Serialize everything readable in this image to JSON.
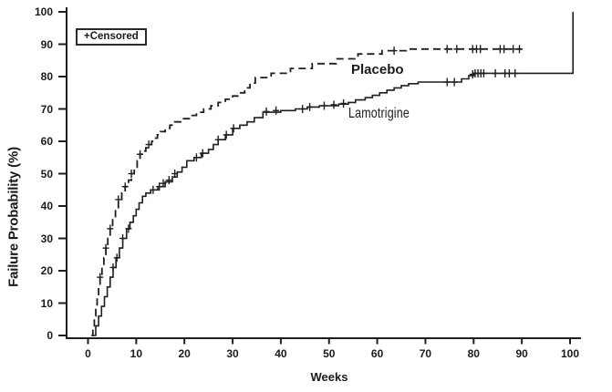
{
  "figure": {
    "background": "#ffffff",
    "line_color": "#1f1f1f"
  },
  "legend": {
    "label": "+Censored"
  },
  "annotations": {
    "placebo_label": "Placebo",
    "lamotrigine_label": "Lamotrigine"
  },
  "chart_data": {
    "type": "line",
    "subtype": "kaplan-meier-step-curves",
    "title": "",
    "xlabel": "Weeks",
    "ylabel": "Failure Probability (%)",
    "xlim": [
      0,
      102
    ],
    "ylim": [
      0,
      100
    ],
    "x_ticks": [
      0,
      10,
      20,
      30,
      40,
      50,
      60,
      70,
      80,
      90,
      100
    ],
    "y_ticks": [
      0,
      10,
      20,
      30,
      40,
      50,
      60,
      70,
      80,
      90,
      100
    ],
    "grid": false,
    "legend_position": "top-left",
    "censor_marker": "plus",
    "series": [
      {
        "name": "Placebo",
        "line_style": "dashed",
        "color": "#1f1f1f",
        "steps": [
          [
            0.7,
            0
          ],
          [
            1,
            3
          ],
          [
            1.3,
            6
          ],
          [
            1.6,
            9
          ],
          [
            1.9,
            12
          ],
          [
            2.2,
            15
          ],
          [
            2.5,
            18
          ],
          [
            2.9,
            21
          ],
          [
            3.3,
            24
          ],
          [
            3.7,
            27
          ],
          [
            4.1,
            30
          ],
          [
            4.6,
            33
          ],
          [
            5.1,
            36
          ],
          [
            5.7,
            39
          ],
          [
            6.3,
            42
          ],
          [
            7,
            44
          ],
          [
            7.7,
            46
          ],
          [
            8.4,
            48
          ],
          [
            9,
            50
          ],
          [
            9.6,
            52
          ],
          [
            10.2,
            54
          ],
          [
            10.8,
            56
          ],
          [
            11.4,
            57
          ],
          [
            12,
            58
          ],
          [
            12.6,
            59
          ],
          [
            13.2,
            60
          ],
          [
            13.8,
            61
          ],
          [
            14.4,
            62
          ],
          [
            15,
            63
          ],
          [
            16,
            64
          ],
          [
            17,
            65
          ],
          [
            18,
            66
          ],
          [
            19.5,
            67
          ],
          [
            21,
            68
          ],
          [
            22.5,
            69
          ],
          [
            24,
            70
          ],
          [
            25.5,
            71
          ],
          [
            27,
            72
          ],
          [
            28.5,
            73
          ],
          [
            30,
            74
          ],
          [
            31.5,
            75
          ],
          [
            32.5,
            76.5
          ],
          [
            33.6,
            78
          ],
          [
            34.7,
            79.7
          ],
          [
            38,
            81
          ],
          [
            42,
            82.5
          ],
          [
            46.5,
            84
          ],
          [
            51.5,
            85.5
          ],
          [
            56,
            87
          ],
          [
            61,
            88
          ],
          [
            66,
            88.5
          ],
          [
            90,
            88.5
          ]
        ],
        "censored": [
          [
            2.5,
            18
          ],
          [
            3.7,
            27
          ],
          [
            4.6,
            33
          ],
          [
            6.3,
            42
          ],
          [
            7.7,
            46
          ],
          [
            9,
            50
          ],
          [
            10.8,
            56
          ],
          [
            12.6,
            59
          ],
          [
            63.5,
            88
          ],
          [
            74.5,
            88.5
          ],
          [
            76.5,
            88.5
          ],
          [
            79.8,
            88.5
          ],
          [
            80.6,
            88.5
          ],
          [
            81.4,
            88.5
          ],
          [
            85.5,
            88.5
          ],
          [
            86.3,
            88.5
          ],
          [
            88.2,
            88.5
          ],
          [
            89.5,
            88.5
          ]
        ]
      },
      {
        "name": "Lamotrigine",
        "line_style": "solid",
        "color": "#1f1f1f",
        "steps": [
          [
            1,
            0
          ],
          [
            1.6,
            3
          ],
          [
            2.2,
            6
          ],
          [
            2.8,
            9
          ],
          [
            3.4,
            12
          ],
          [
            4,
            15
          ],
          [
            4.6,
            18
          ],
          [
            5.2,
            21
          ],
          [
            5.8,
            24
          ],
          [
            6.5,
            27
          ],
          [
            7.2,
            30
          ],
          [
            8,
            33
          ],
          [
            8.7,
            35
          ],
          [
            9.4,
            37
          ],
          [
            10,
            39
          ],
          [
            10.6,
            41
          ],
          [
            11.3,
            43
          ],
          [
            12,
            44
          ],
          [
            13,
            45
          ],
          [
            14.5,
            46
          ],
          [
            16,
            47.5
          ],
          [
            17.5,
            49
          ],
          [
            18.5,
            50.5
          ],
          [
            19.5,
            52
          ],
          [
            20.5,
            54
          ],
          [
            22,
            55
          ],
          [
            23.5,
            56.3
          ],
          [
            25,
            57.5
          ],
          [
            26,
            59
          ],
          [
            27,
            60.5
          ],
          [
            28.5,
            62
          ],
          [
            30,
            64
          ],
          [
            31.5,
            65
          ],
          [
            33,
            66
          ],
          [
            34.5,
            67.3
          ],
          [
            36.3,
            69
          ],
          [
            40,
            69.5
          ],
          [
            43,
            70
          ],
          [
            45.5,
            70.6
          ],
          [
            48,
            71
          ],
          [
            52,
            71.5
          ],
          [
            54,
            72
          ],
          [
            55.5,
            72.8
          ],
          [
            57.5,
            73.5
          ],
          [
            59,
            74.2
          ],
          [
            60.5,
            75
          ],
          [
            62,
            75.8
          ],
          [
            63.5,
            76.5
          ],
          [
            65,
            77.2
          ],
          [
            66.5,
            77.8
          ],
          [
            68.5,
            78.3
          ],
          [
            77.5,
            79.3
          ],
          [
            79,
            80.3
          ],
          [
            80,
            81
          ],
          [
            100.6,
            100
          ]
        ],
        "censored": [
          [
            5.2,
            21
          ],
          [
            6,
            24
          ],
          [
            7.2,
            30
          ],
          [
            8.4,
            33
          ],
          [
            13.5,
            45
          ],
          [
            14.8,
            46
          ],
          [
            15.6,
            47
          ],
          [
            16.8,
            48
          ],
          [
            18,
            50
          ],
          [
            22.5,
            55
          ],
          [
            23.8,
            56.3
          ],
          [
            27,
            60.5
          ],
          [
            28.7,
            62
          ],
          [
            30.2,
            64
          ],
          [
            37,
            69.2
          ],
          [
            39,
            69.5
          ],
          [
            44.5,
            70
          ],
          [
            46,
            70.6
          ],
          [
            49,
            71
          ],
          [
            51,
            71.3
          ],
          [
            53,
            71.7
          ],
          [
            74.5,
            78.3
          ],
          [
            76,
            78.3
          ],
          [
            79.8,
            80.7
          ],
          [
            80.3,
            81
          ],
          [
            80.9,
            81
          ],
          [
            81.5,
            81
          ],
          [
            82.1,
            81
          ],
          [
            84.5,
            81
          ],
          [
            86.5,
            81
          ],
          [
            87.4,
            81
          ],
          [
            88.6,
            81
          ]
        ]
      }
    ]
  }
}
